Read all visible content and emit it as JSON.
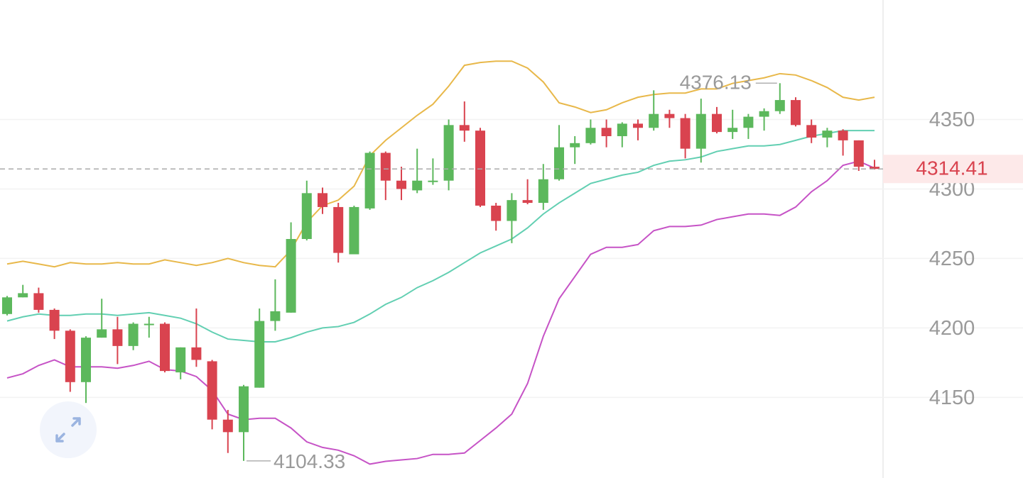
{
  "chart_data": {
    "type": "candlestick",
    "open": [
      4210,
      4222,
      4225,
      4213,
      4198,
      4161,
      4193,
      4199,
      4187,
      4202,
      4203,
      4168,
      4186,
      4176,
      4134,
      4125,
      4157,
      4205,
      4211,
      4264,
      4297,
      4287,
      4253,
      4286,
      4326,
      4306,
      4299,
      4305,
      4306,
      4346,
      4342,
      4288,
      4277,
      4292,
      4290,
      4307,
      4330,
      4333,
      4344,
      4338,
      4347,
      4344,
      4354,
      4351,
      4329,
      4354,
      4341,
      4344,
      4352,
      4356,
      4364,
      4346,
      4337,
      4342,
      4335,
      4316
    ],
    "high": [
      4223,
      4231,
      4229,
      4214,
      4199,
      4194,
      4221,
      4208,
      4204,
      4208,
      4204,
      4186,
      4214,
      4177,
      4141,
      4159,
      4214,
      4235,
      4276,
      4306,
      4301,
      4290,
      4288,
      4327,
      4327,
      4316,
      4329,
      4322,
      4350,
      4363,
      4344,
      4290,
      4297,
      4307,
      4318,
      4346,
      4338,
      4350,
      4350,
      4348,
      4350,
      4371,
      4357,
      4354,
      4365,
      4359,
      4357,
      4354,
      4358,
      4376.13,
      4366,
      4350,
      4344,
      4343,
      4335,
      4321
    ],
    "low": [
      4209,
      4222,
      4211,
      4192,
      4154,
      4146,
      4193,
      4174,
      4184,
      4193,
      4168,
      4163,
      4172,
      4127,
      4110,
      4104.33,
      4157,
      4198,
      4211,
      4263,
      4282,
      4247,
      4253,
      4285,
      4292,
      4292,
      4297,
      4303,
      4299,
      4334,
      4287,
      4270,
      4261,
      4289,
      4285,
      4306,
      4318,
      4332,
      4330,
      4330,
      4335,
      4342,
      4344,
      4322,
      4319,
      4340,
      4336,
      4336,
      4342,
      4354,
      4345,
      4333,
      4330,
      4324,
      4313,
      4314
    ],
    "close": [
      4222,
      4225,
      4213,
      4198,
      4161,
      4193,
      4199,
      4187,
      4203,
      4203,
      4169,
      4186,
      4177,
      4134,
      4125,
      4158,
      4205,
      4212,
      4264,
      4297,
      4287,
      4254,
      4287,
      4326,
      4306,
      4300,
      4306,
      4306,
      4346,
      4342,
      4288,
      4277,
      4292,
      4290,
      4307,
      4330,
      4333,
      4344,
      4338,
      4347,
      4344,
      4354,
      4351,
      4329,
      4354,
      4341,
      4344,
      4352,
      4356,
      4364,
      4346,
      4337,
      4342,
      4335,
      4316,
      4314.41
    ],
    "up_color": "#5cb85c",
    "down_color": "#d9434f",
    "series": [
      {
        "color": "#e8b84a",
        "values": [
          4246,
          4248,
          4246,
          4244,
          4247,
          4246,
          4246,
          4247,
          4246,
          4246,
          4249,
          4247,
          4245,
          4247,
          4250,
          4247,
          4245,
          4244,
          4256,
          4276,
          4288,
          4292,
          4302,
          4324,
          4335,
          4344,
          4353,
          4361,
          4374,
          4389,
          4391,
          4392,
          4392,
          4387,
          4377,
          4362,
          4359,
          4355,
          4357,
          4362,
          4366,
          4368,
          4369,
          4369,
          4372,
          4372,
          4376,
          4378,
          4380,
          4383,
          4382,
          4378,
          4373,
          4366,
          4364,
          4366
        ]
      },
      {
        "color": "#62cfb2",
        "values": [
          4205,
          4208,
          4210,
          4209,
          4209,
          4210,
          4210,
          4209,
          4210,
          4211,
          4209,
          4207,
          4203,
          4197,
          4192,
          4191,
          4190,
          4190,
          4193,
          4197,
          4200,
          4201,
          4204,
          4210,
          4217,
          4222,
          4229,
          4234,
          4240,
          4247,
          4254,
          4259,
          4264,
          4272,
          4282,
          4290,
          4297,
          4304,
          4307,
          4310,
          4312,
          4317,
          4320,
          4321,
          4323,
          4327,
          4329,
          4331,
          4331,
          4332,
          4335,
          4338,
          4340,
          4342,
          4342,
          4342
        ]
      },
      {
        "color": "#c653c6",
        "values": [
          4164,
          4167,
          4173,
          4177,
          4172,
          4172,
          4172,
          4171,
          4173,
          4176,
          4170,
          4169,
          4165,
          4155,
          4138,
          4134,
          4135,
          4135,
          4128,
          4118,
          4114,
          4112,
          4108,
          4102,
          4104,
          4105,
          4106,
          4109,
          4109,
          4110,
          4119,
          4128,
          4138,
          4160,
          4194,
          4221,
          4237,
          4253,
          4258,
          4258,
          4260,
          4270,
          4273,
          4273,
          4274,
          4278,
          4280,
          4282,
          4282,
          4281,
          4287,
          4298,
          4306,
          4317,
          4320,
          4315
        ]
      }
    ],
    "ylim": [
      4092,
      4436
    ],
    "yticks": [
      4150,
      4200,
      4250,
      4300,
      4350
    ],
    "grid": true
  }
}
